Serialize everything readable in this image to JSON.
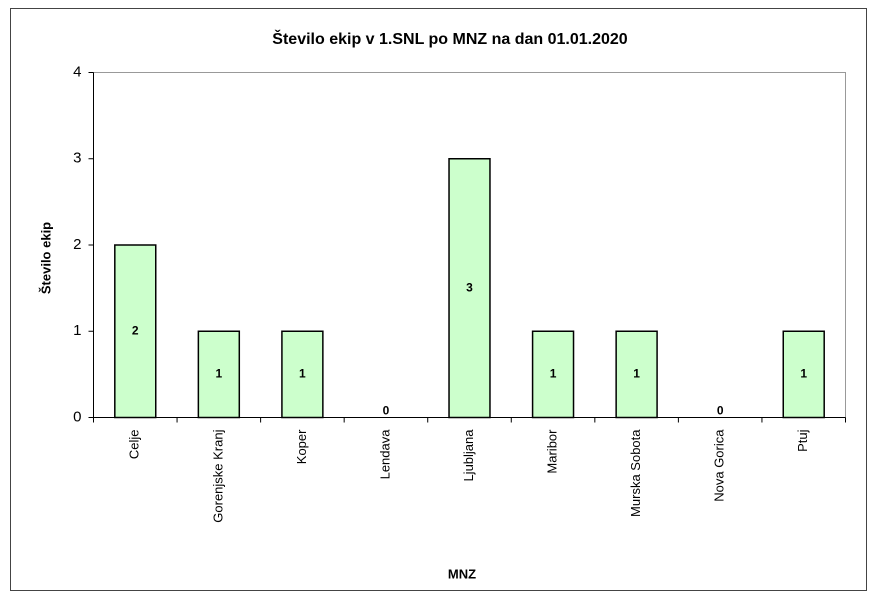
{
  "chart_data": {
    "type": "bar",
    "title": "Število ekip v 1.SNL po MNZ na dan 01.01.2020",
    "xlabel": "MNZ",
    "ylabel": "Število ekip",
    "categories": [
      "Celje",
      "Gorenjske Kranj",
      "Koper",
      "Lendava",
      "Ljubljana",
      "Maribor",
      "Murska Sobota",
      "Nova Gorica",
      "Ptuj"
    ],
    "values": [
      2,
      1,
      1,
      0,
      3,
      1,
      1,
      0,
      1
    ],
    "color": "#ccffcc",
    "ylim": [
      0,
      4
    ],
    "yticks": [
      0,
      1,
      2,
      3,
      4
    ],
    "grid": false
  }
}
